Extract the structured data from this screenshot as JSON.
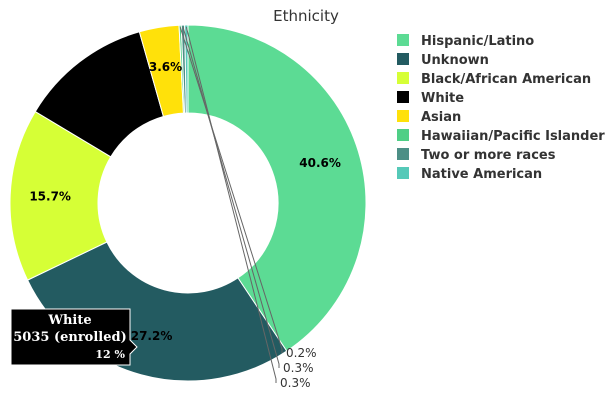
{
  "chart_data": {
    "type": "pie",
    "title": "Ethnicity",
    "donut": true,
    "legend_position": "right",
    "series": [
      {
        "name": "Hispanic/Latino",
        "value": 40.6,
        "label": "40.6%",
        "color": "#5cdb94"
      },
      {
        "name": "Unknown",
        "value": 27.2,
        "label": "27.2%",
        "color": "#235b61"
      },
      {
        "name": "Black/African American",
        "value": 15.7,
        "label": "15.7%",
        "color": "#d6ff36"
      },
      {
        "name": "White",
        "value": 12.0,
        "label": "",
        "color": "#000000"
      },
      {
        "name": "Asian",
        "value": 3.6,
        "label": "3.6%",
        "color": "#ffe10a"
      },
      {
        "name": "Hawaiian/Pacific Islander",
        "value": 0.2,
        "label": "0.2%",
        "color": "#4fcf86"
      },
      {
        "name": "Two or more races",
        "value": 0.3,
        "label": "0.3%",
        "color": "#4d8f86"
      },
      {
        "name": "Native American",
        "value": 0.3,
        "label": "0.3%",
        "color": "#55c9b8"
      }
    ],
    "tooltip": {
      "name": "White",
      "line": "5035 (enrolled)",
      "percent": "12 %"
    }
  }
}
